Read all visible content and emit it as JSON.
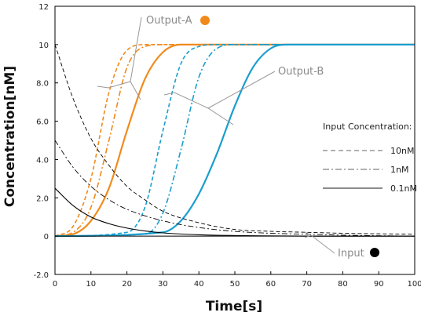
{
  "chart_data": {
    "type": "line",
    "xlabel": "Time[s]",
    "ylabel": "Concentration[nM]",
    "xlim": [
      0,
      100
    ],
    "ylim": [
      -2,
      12
    ],
    "x_ticks": [
      "0",
      "10",
      "20",
      "30",
      "40",
      "50",
      "60",
      "70",
      "80",
      "90",
      "100"
    ],
    "y_ticks": [
      "-2.0",
      "0",
      "2.0",
      "4.0",
      "6.0",
      "8.0",
      "10",
      "12"
    ],
    "grid": false,
    "legend": {
      "title": "Input Concentration:",
      "entries": [
        "10nM",
        "1nM",
        "0.1nM"
      ],
      "placement": "right"
    },
    "annotations": [
      {
        "text": "Output-A",
        "marker_color": "#f18a1c"
      },
      {
        "text": "Output-B"
      },
      {
        "text": "Input",
        "marker_color": "#000000"
      }
    ],
    "series": [
      {
        "group": "Output-A",
        "input": "10nM",
        "color": "#f18a1c",
        "dash": "dashed",
        "points": [
          [
            0,
            0
          ],
          [
            5,
            0.5
          ],
          [
            10,
            3.0
          ],
          [
            15,
            7.5
          ],
          [
            20,
            9.7
          ],
          [
            25,
            10
          ],
          [
            100,
            10
          ]
        ]
      },
      {
        "group": "Output-A",
        "input": "1nM",
        "color": "#f18a1c",
        "dash": "dashdot",
        "points": [
          [
            0,
            0
          ],
          [
            5,
            0.2
          ],
          [
            10,
            1.5
          ],
          [
            15,
            5.0
          ],
          [
            20,
            8.8
          ],
          [
            25,
            9.9
          ],
          [
            30,
            10
          ],
          [
            100,
            10
          ]
        ]
      },
      {
        "group": "Output-A",
        "input": "0.1nM",
        "color": "#f18a1c",
        "dash": "solid",
        "points": [
          [
            0,
            0
          ],
          [
            5,
            0.1
          ],
          [
            10,
            0.8
          ],
          [
            15,
            2.5
          ],
          [
            20,
            5.5
          ],
          [
            25,
            8.2
          ],
          [
            30,
            9.6
          ],
          [
            35,
            10
          ],
          [
            100,
            10
          ]
        ]
      },
      {
        "group": "Output-B",
        "input": "10nM",
        "color": "#1a9ecf",
        "dash": "dashed",
        "points": [
          [
            0,
            0
          ],
          [
            20,
            0.2
          ],
          [
            25,
            1.5
          ],
          [
            30,
            5.5
          ],
          [
            35,
            9.0
          ],
          [
            40,
            9.9
          ],
          [
            45,
            10
          ],
          [
            100,
            10
          ]
        ]
      },
      {
        "group": "Output-B",
        "input": "1nM",
        "color": "#1a9ecf",
        "dash": "dashdot",
        "points": [
          [
            0,
            0
          ],
          [
            25,
            0.1
          ],
          [
            30,
            1.2
          ],
          [
            35,
            4.5
          ],
          [
            40,
            8.3
          ],
          [
            45,
            9.8
          ],
          [
            50,
            10
          ],
          [
            100,
            10
          ]
        ]
      },
      {
        "group": "Output-B",
        "input": "0.1nM",
        "color": "#1a9ecf",
        "dash": "solid",
        "points": [
          [
            0,
            0
          ],
          [
            30,
            0.2
          ],
          [
            35,
            0.8
          ],
          [
            40,
            2.2
          ],
          [
            45,
            4.3
          ],
          [
            50,
            6.8
          ],
          [
            55,
            8.8
          ],
          [
            60,
            9.8
          ],
          [
            65,
            10
          ],
          [
            100,
            10
          ]
        ]
      },
      {
        "group": "Input",
        "input": "10nM",
        "color": "#000000",
        "dash": "dashed",
        "points": [
          [
            0,
            10
          ],
          [
            5,
            7.2
          ],
          [
            10,
            5.1
          ],
          [
            15,
            3.7
          ],
          [
            20,
            2.6
          ],
          [
            25,
            1.9
          ],
          [
            30,
            1.3
          ],
          [
            40,
            0.7
          ],
          [
            50,
            0.35
          ],
          [
            60,
            0.25
          ],
          [
            70,
            0.2
          ],
          [
            80,
            0.15
          ],
          [
            100,
            0.1
          ]
        ]
      },
      {
        "group": "Input",
        "input": "1nM",
        "color": "#000000",
        "dash": "dashdot",
        "points": [
          [
            0,
            5
          ],
          [
            5,
            3.6
          ],
          [
            10,
            2.6
          ],
          [
            15,
            1.9
          ],
          [
            20,
            1.4
          ],
          [
            30,
            0.8
          ],
          [
            40,
            0.45
          ],
          [
            50,
            0.25
          ],
          [
            60,
            0.15
          ],
          [
            70,
            0.1
          ],
          [
            80,
            0.05
          ],
          [
            100,
            0
          ]
        ]
      },
      {
        "group": "Input",
        "input": "0.1nM",
        "color": "#000000",
        "dash": "solid",
        "points": [
          [
            0,
            2.5
          ],
          [
            5,
            1.6
          ],
          [
            10,
            1.0
          ],
          [
            15,
            0.65
          ],
          [
            20,
            0.42
          ],
          [
            25,
            0.27
          ],
          [
            30,
            0.17
          ],
          [
            40,
            0.07
          ],
          [
            50,
            0.03
          ],
          [
            70,
            0
          ],
          [
            100,
            0
          ]
        ]
      }
    ]
  }
}
